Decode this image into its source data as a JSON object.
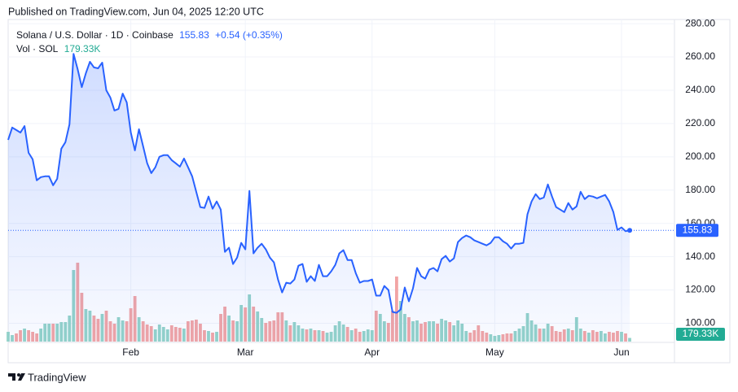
{
  "chart_data": {
    "type": "line",
    "published": "Published on TradingView.com, Jun 04, 2025 12:20 UTC",
    "brand": "TradingView",
    "categories": [
      null,
      null,
      null,
      null,
      null,
      null,
      null,
      null,
      null,
      null,
      null,
      null,
      null,
      null,
      null,
      null,
      null,
      null,
      null,
      null,
      null,
      null,
      null,
      null,
      null,
      null,
      null,
      null,
      null,
      null,
      "Feb",
      null,
      null,
      null,
      null,
      null,
      null,
      null,
      null,
      null,
      null,
      null,
      null,
      null,
      null,
      null,
      null,
      null,
      null,
      null,
      null,
      null,
      null,
      null,
      null,
      null,
      null,
      null,
      "Mar",
      null,
      null,
      null,
      null,
      null,
      null,
      null,
      null,
      null,
      null,
      null,
      null,
      null,
      null,
      null,
      null,
      null,
      null,
      null,
      null,
      null,
      null,
      null,
      null,
      null,
      null,
      null,
      null,
      null,
      null,
      "Apr",
      null,
      null,
      null,
      null,
      null,
      null,
      null,
      null,
      null,
      null,
      null,
      null,
      null,
      null,
      null,
      null,
      null,
      null,
      null,
      null,
      null,
      null,
      null,
      null,
      null,
      null,
      null,
      null,
      null,
      "May",
      null,
      null,
      null,
      null,
      null,
      null,
      null,
      null,
      null,
      null,
      null,
      null,
      null,
      null,
      null,
      null,
      null,
      null,
      null,
      null,
      null,
      null,
      null,
      null,
      null,
      null,
      null,
      null,
      null,
      null,
      "Jun",
      null,
      null
    ],
    "series": [
      {
        "name": "Solana / U.S. Dollar · 1D · Coinbase",
        "color": "#2962ff",
        "change_label": "+0.54 (+0.35%)",
        "values": [
          210.2,
          217.6,
          216.1,
          214.6,
          218.5,
          202.4,
          198.5,
          185.9,
          187.8,
          188.3,
          188.3,
          182.9,
          186.8,
          204.9,
          208.8,
          219.5,
          261.9,
          252.7,
          241.9,
          250.2,
          257.1,
          253.7,
          253.2,
          256.6,
          240.0,
          235.6,
          227.8,
          228.8,
          238.0,
          232.7,
          214.6,
          203.9,
          216.6,
          206.3,
          196.1,
          190.2,
          193.7,
          200.0,
          201.0,
          201.0,
          198.0,
          196.1,
          194.1,
          199.0,
          193.7,
          188.3,
          179.0,
          169.8,
          169.3,
          176.1,
          168.8,
          173.2,
          168.3,
          142.9,
          145.4,
          135.6,
          139.5,
          148.3,
          144.4,
          179.5,
          142.0,
          145.4,
          147.8,
          144.4,
          139.5,
          136.6,
          126.3,
          118.5,
          124.4,
          123.9,
          126.3,
          134.6,
          135.6,
          124.9,
          128.3,
          125.4,
          135.1,
          128.3,
          128.3,
          131.2,
          135.1,
          142.0,
          143.9,
          138.0,
          138.0,
          130.2,
          124.4,
          125.4,
          125.4,
          126.3,
          116.6,
          116.6,
          122.4,
          120.0,
          106.8,
          106.3,
          108.3,
          121.5,
          113.2,
          121.0,
          133.2,
          128.3,
          126.8,
          132.2,
          133.2,
          131.2,
          138.5,
          140.5,
          137.1,
          139.0,
          148.8,
          151.2,
          152.7,
          151.7,
          149.8,
          148.8,
          147.8,
          146.8,
          148.3,
          151.7,
          151.7,
          149.3,
          147.8,
          144.9,
          147.8,
          147.8,
          148.3,
          165.4,
          173.2,
          177.6,
          174.6,
          175.6,
          183.4,
          176.1,
          169.8,
          168.3,
          166.8,
          172.2,
          168.3,
          170.2,
          179.0,
          174.6,
          176.6,
          176.1,
          175.1,
          176.1,
          177.1,
          173.2,
          166.8,
          156.1,
          157.6,
          155.3,
          155.83
        ]
      },
      {
        "name": "Vol · SOL",
        "type": "bar",
        "up_color": "#94d3c9",
        "down_color": "#f2a5a5",
        "label_color": "#22ab94",
        "values": [
          480,
          320,
          400,
          560,
          640,
          560,
          480,
          400,
          640,
          880,
          880,
          880,
          880,
          960,
          960,
          1280,
          3520,
          3880,
          2400,
          1600,
          1520,
          1280,
          1120,
          1360,
          1520,
          1000,
          880,
          1200,
          1040,
          1000,
          1640,
          2240,
          1200,
          1000,
          840,
          760,
          600,
          840,
          720,
          600,
          800,
          720,
          680,
          640,
          1000,
          1040,
          1080,
          880,
          560,
          520,
          440,
          480,
          1360,
          1720,
          1280,
          1040,
          1000,
          1800,
          1680,
          2320,
          1720,
          1480,
          1160,
          920,
          1000,
          1040,
          1440,
          1440,
          1040,
          800,
          960,
          800,
          640,
          600,
          640,
          560,
          560,
          520,
          440,
          480,
          800,
          1000,
          840,
          720,
          560,
          640,
          480,
          520,
          600,
          560,
          1520,
          1360,
          1000,
          920,
          1520,
          3200,
          2000,
          1360,
          1200,
          1000,
          1040,
          880,
          960,
          1000,
          1000,
          880,
          1120,
          1040,
          960,
          800,
          1040,
          880,
          520,
          440,
          560,
          800,
          520,
          440,
          360,
          280,
          320,
          360,
          400,
          400,
          520,
          640,
          760,
          1400,
          1040,
          840,
          640,
          640,
          880,
          760,
          520,
          480,
          600,
          640,
          560,
          1200,
          640,
          520,
          440,
          560,
          480,
          520,
          400,
          480,
          440,
          520,
          480,
          400,
          179.33
        ],
        "value_labels": [
          null,
          null,
          null,
          null,
          null,
          null,
          null,
          null,
          null,
          null,
          null,
          null,
          null,
          null,
          null,
          null,
          null,
          null,
          null,
          null,
          null,
          null,
          null,
          null,
          null,
          null,
          null,
          null,
          null,
          null,
          null,
          null,
          null,
          null,
          null,
          null,
          null,
          null,
          null,
          null,
          null,
          null,
          null,
          null,
          null,
          null,
          null,
          null,
          null,
          null,
          null,
          null,
          null,
          null,
          null,
          null,
          null,
          null,
          null,
          null,
          null,
          null,
          null,
          null,
          null,
          null,
          null,
          null,
          null,
          null,
          null,
          null,
          null,
          null,
          null,
          null,
          null,
          null,
          null,
          null,
          null,
          null,
          null,
          null,
          null,
          null,
          null,
          null,
          null,
          null,
          null,
          null,
          null,
          null,
          null,
          null,
          null,
          null,
          null,
          null,
          null,
          null,
          null,
          null,
          null,
          null,
          null,
          null,
          null,
          null,
          null,
          null,
          null,
          null,
          null,
          null,
          null,
          null,
          null,
          null,
          null,
          null,
          null,
          null,
          null,
          null,
          null,
          null,
          null,
          null,
          null,
          null,
          null,
          null,
          null,
          null,
          null,
          null,
          null,
          null,
          null,
          null,
          null,
          null,
          null,
          null,
          null,
          null,
          null,
          null,
          null,
          null,
          "179.33K"
        ]
      }
    ],
    "ylim": [
      89,
      282.5
    ],
    "yticks": [
      {
        "value": 100,
        "label": "100.00"
      },
      {
        "value": 120,
        "label": "120.00"
      },
      {
        "value": 140,
        "label": "140.00"
      },
      {
        "value": 160,
        "label": "160.00"
      },
      {
        "value": 180,
        "label": "180.00"
      },
      {
        "value": 200,
        "label": "200.00"
      },
      {
        "value": 220,
        "label": "220.00"
      },
      {
        "value": 240,
        "label": "240.00"
      },
      {
        "value": 260,
        "label": "260.00"
      },
      {
        "value": 280,
        "label": "280.00"
      }
    ],
    "grid": true
  }
}
